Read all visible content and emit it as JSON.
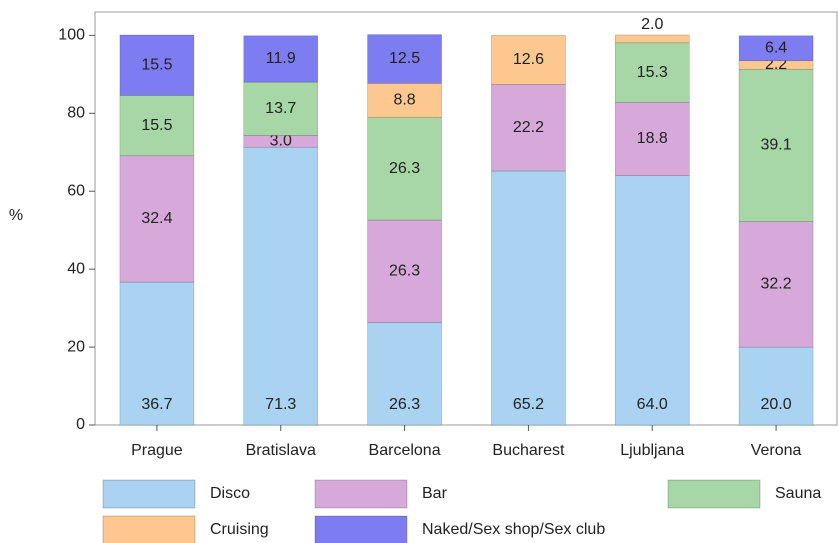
{
  "chart_data": {
    "type": "stacked_bar",
    "y_label": "%",
    "categories": [
      "Prague",
      "Bratislava",
      "Barcelona",
      "Bucharest",
      "Ljubljana",
      "Verona"
    ],
    "series": [
      {
        "name": "Disco",
        "color": "#a9d3f1",
        "values": [
          36.7,
          71.3,
          26.3,
          65.2,
          64.0,
          20.0
        ],
        "value_labels": [
          "36.7",
          "71.3",
          "26.3",
          "65.2",
          "64.0",
          "20.0"
        ]
      },
      {
        "name": "Bar",
        "color": "#d7a9da",
        "values": [
          32.4,
          3.0,
          26.3,
          22.2,
          18.8,
          32.2
        ],
        "value_labels": [
          "32.4",
          "3.0",
          "26.3",
          "22.2",
          "18.8",
          "32.2"
        ]
      },
      {
        "name": "Sauna",
        "color": "#a7d7a7",
        "values": [
          15.5,
          13.7,
          26.3,
          null,
          15.3,
          39.1
        ],
        "value_labels": [
          "15.5",
          "13.7",
          "26.3",
          null,
          "15.3",
          "39.1"
        ]
      },
      {
        "name": "Cruising",
        "color": "#fcc88f",
        "values": [
          null,
          null,
          8.8,
          12.6,
          2.0,
          2.2
        ],
        "value_labels": [
          null,
          null,
          "8.8",
          "12.6",
          "2.0",
          "2.2"
        ]
      },
      {
        "name": "Naked/Sex shop/Sex club",
        "color": "#7d7cf0",
        "values": [
          15.5,
          11.9,
          12.5,
          null,
          null,
          6.4
        ],
        "value_labels": [
          "15.5",
          "11.9",
          "12.5",
          null,
          null,
          "6.4"
        ]
      }
    ],
    "ylim": [
      0,
      106
    ],
    "yticks": [
      0,
      20,
      40,
      60,
      80,
      100
    ],
    "legend": "bottom"
  }
}
